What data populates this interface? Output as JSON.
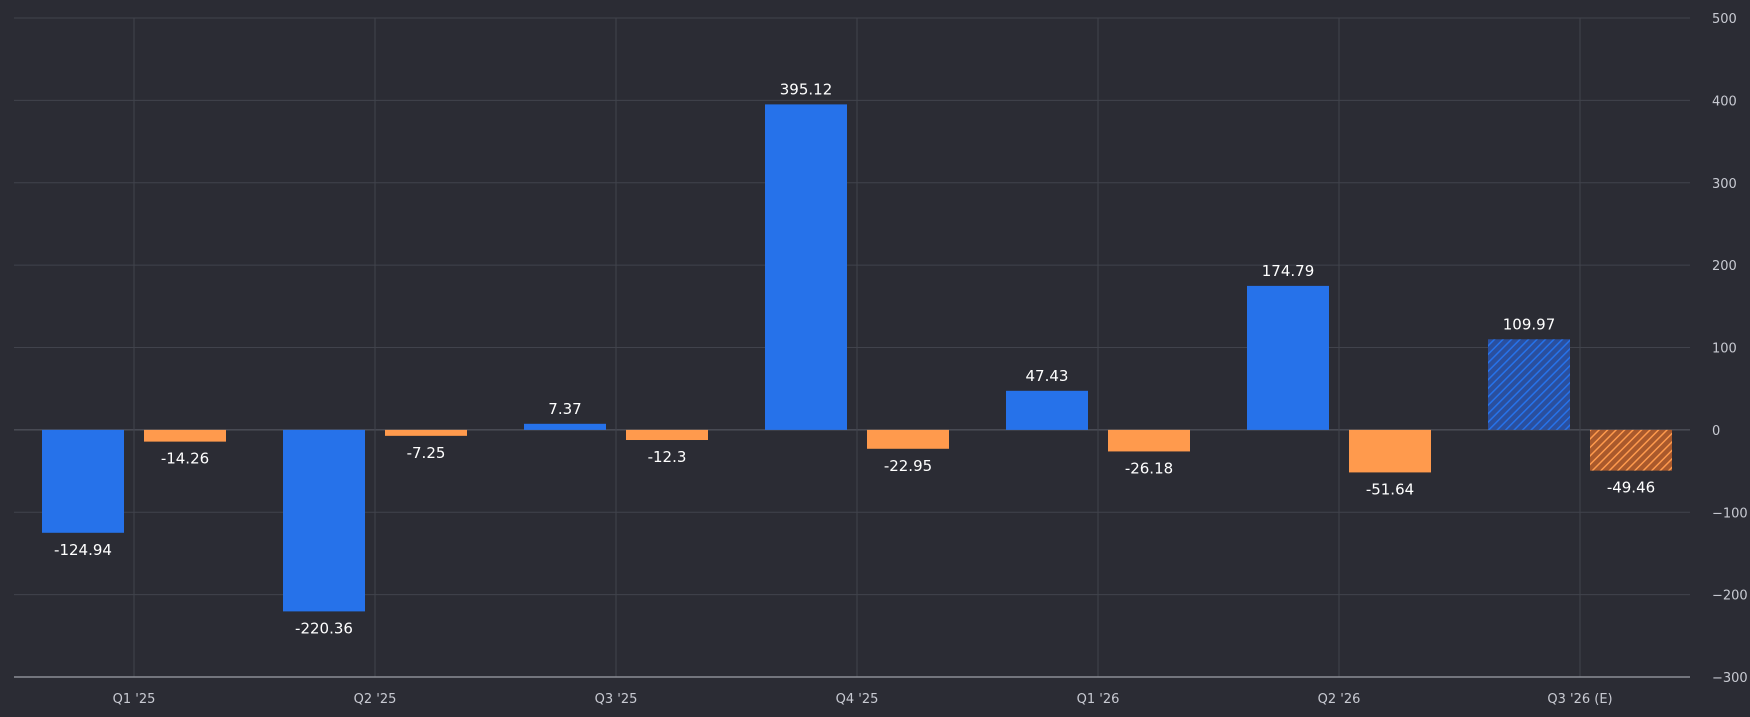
{
  "chart_data": {
    "type": "bar",
    "categories": [
      "Q1 '25",
      "Q2 '25",
      "Q3 '25",
      "Q4 '25",
      "Q1 '26",
      "Q2 '26",
      "Q3 '26 (E)"
    ],
    "series": [
      {
        "color": "#2672ea",
        "values": [
          -124.94,
          -220.36,
          7.37,
          395.12,
          47.43,
          174.79,
          109.97
        ],
        "labels": [
          "-124.94",
          "-220.36",
          "7.37",
          "395.12",
          "47.43",
          "174.79",
          "109.97"
        ]
      },
      {
        "color": "#ff9a4d",
        "values": [
          -14.26,
          -7.25,
          -12.3,
          -22.95,
          -26.18,
          -51.64,
          -49.46
        ],
        "labels": [
          "-14.26",
          "-7.25",
          "-12.3",
          "-22.95",
          "-26.18",
          "-51.64",
          "-49.46"
        ]
      }
    ],
    "estimated_category_index": 6,
    "ylim": [
      -300,
      500
    ],
    "yticks": [
      500,
      400,
      300,
      200,
      100,
      0,
      -100,
      -200,
      -300
    ],
    "ytick_labels": [
      "500",
      "400",
      "300",
      "200",
      "100",
      "0",
      "−100",
      "−200",
      "−300"
    ],
    "y_axis_side": "right",
    "grid": true,
    "xlabel": "",
    "ylabel": "",
    "title": ""
  },
  "colors": {
    "background": "#2b2c34",
    "grid": "#41434c",
    "axis": "#8b8d95",
    "blue_estimate_hatch": "#2a4f9e",
    "orange_estimate_hatch": "#a9592c"
  }
}
